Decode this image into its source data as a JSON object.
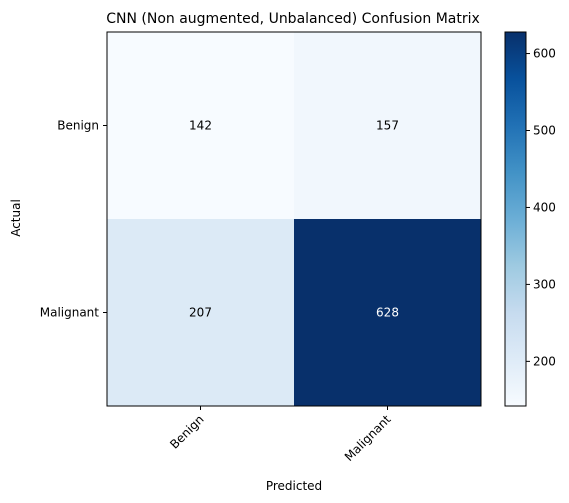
{
  "chart_data": {
    "type": "heatmap",
    "title": "CNN (Non augmented, Unbalanced) Confusion Matrix",
    "xlabel": "Predicted",
    "ylabel": "Actual",
    "x_categories": [
      "Benign",
      "Malignant"
    ],
    "y_categories": [
      "Benign",
      "Malignant"
    ],
    "values": [
      [
        142,
        157
      ],
      [
        207,
        628
      ]
    ],
    "colormap": "Blues",
    "colorbar": {
      "min": 142,
      "max": 628,
      "ticks": [
        200,
        300,
        400,
        500,
        600
      ]
    },
    "grid": false
  }
}
